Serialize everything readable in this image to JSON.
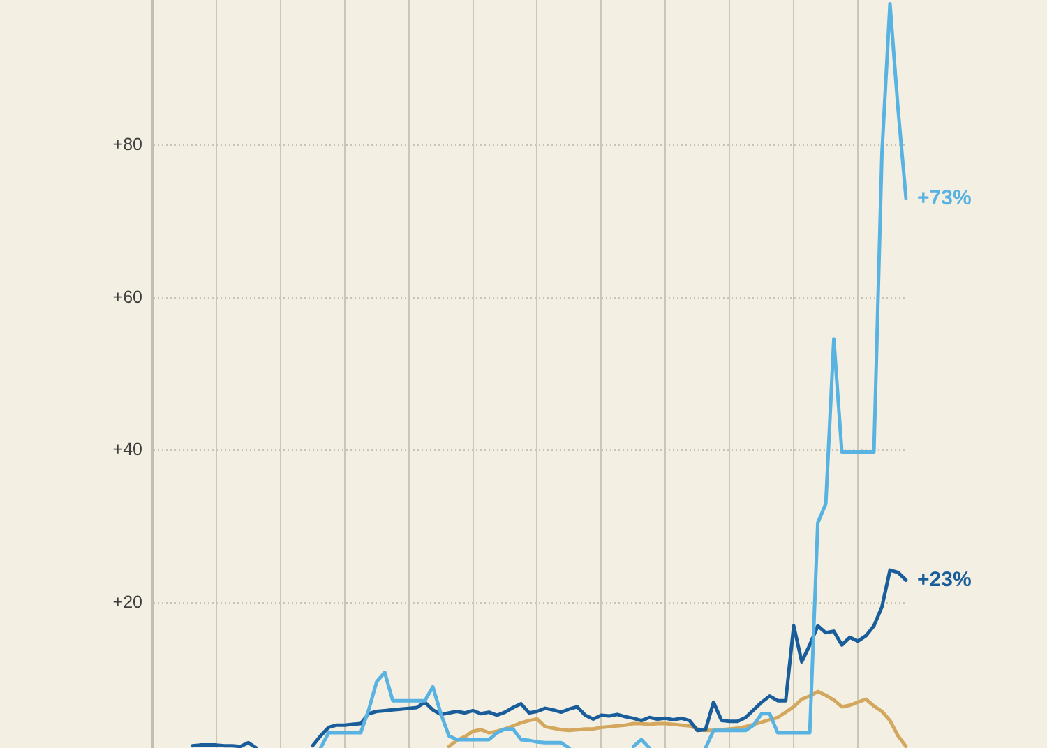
{
  "chart_data": {
    "type": "line",
    "categories": [
      null,
      null,
      null,
      null,
      null,
      null,
      null,
      null,
      null,
      null,
      null,
      null,
      null,
      null,
      null,
      null,
      null,
      null,
      null,
      null,
      null,
      null,
      null,
      null,
      null,
      null,
      null,
      null,
      null,
      null,
      null,
      null,
      null,
      null,
      null,
      null,
      null,
      null,
      null,
      null,
      null,
      null,
      null,
      null,
      null,
      null,
      null,
      null,
      null,
      null,
      null,
      null,
      null,
      null,
      null,
      null,
      null,
      null,
      null,
      null,
      null,
      null,
      null,
      null,
      null,
      null,
      null,
      null,
      null,
      null,
      null,
      null,
      null,
      null,
      null,
      null,
      null,
      null,
      null,
      null,
      null,
      null,
      null,
      null,
      null,
      null,
      null,
      null,
      null,
      null,
      null,
      null,
      null,
      null,
      null
    ],
    "ylim": [
      1,
      99
    ],
    "yticks": [
      {
        "value": 20,
        "label": "+20"
      },
      {
        "value": 40,
        "label": "+40"
      },
      {
        "value": 60,
        "label": "+60"
      },
      {
        "value": 80,
        "label": "+80"
      }
    ],
    "grid": true,
    "legend": false,
    "marker": "none",
    "line_style": "solid",
    "series": [
      {
        "color": "#58b2e2",
        "values": [
          null,
          null,
          null,
          null,
          null,
          null,
          null,
          null,
          null,
          null,
          null,
          null,
          null,
          null,
          null,
          null,
          null,
          null,
          null,
          null,
          null,
          1.0,
          3.0,
          3.0,
          3.0,
          3.0,
          3.0,
          6.0,
          9.7,
          10.9,
          7.2,
          7.2,
          7.2,
          7.2,
          7.2,
          9.0,
          5.5,
          2.6,
          2.1,
          2.1,
          2.1,
          2.1,
          2.1,
          3.0,
          3.5,
          3.5,
          2.1,
          2.0,
          1.8,
          1.7,
          1.7,
          1.7,
          1.0,
          null,
          null,
          null,
          null,
          null,
          null,
          null,
          null,
          null,
          null,
          null,
          null,
          null,
          null,
          null,
          null,
          null,
          null,
          null,
          null,
          null,
          null,
          null,
          null,
          null,
          null,
          null,
          null,
          null,
          null,
          null,
          null,
          null,
          null,
          null,
          null,
          null,
          null,
          null,
          null,
          null,
          null
        ]
      },
      {
        "color": "#58b2e2",
        "values": [
          null,
          null,
          null,
          null,
          null,
          null,
          null,
          null,
          null,
          null,
          null,
          null,
          null,
          null,
          null,
          null,
          null,
          null,
          null,
          null,
          null,
          null,
          null,
          null,
          null,
          null,
          null,
          null,
          null,
          null,
          null,
          null,
          null,
          null,
          null,
          null,
          null,
          null,
          null,
          null,
          null,
          null,
          null,
          null,
          null,
          null,
          null,
          null,
          null,
          null,
          null,
          null,
          null,
          null,
          null,
          null,
          null,
          null,
          null,
          null,
          1.2,
          2.1,
          1.0,
          null,
          null,
          null,
          null,
          null,
          null,
          null,
          null,
          null,
          null,
          null,
          null,
          null,
          null,
          null,
          null,
          null,
          null,
          null,
          null,
          null,
          null,
          null,
          null,
          null,
          null,
          null,
          null,
          null,
          null,
          null,
          null
        ]
      },
      {
        "color": "#58b2e2",
        "values": [
          null,
          null,
          null,
          null,
          null,
          null,
          null,
          null,
          null,
          null,
          null,
          null,
          null,
          null,
          null,
          null,
          null,
          null,
          null,
          null,
          null,
          null,
          null,
          null,
          null,
          null,
          null,
          null,
          null,
          null,
          null,
          null,
          null,
          null,
          null,
          null,
          null,
          null,
          null,
          null,
          null,
          null,
          null,
          null,
          null,
          null,
          null,
          null,
          null,
          null,
          null,
          null,
          null,
          null,
          null,
          null,
          null,
          null,
          null,
          null,
          null,
          null,
          null,
          null,
          null,
          null,
          null,
          null,
          null,
          1.0,
          3.3,
          3.3,
          3.3,
          3.3,
          3.3,
          4.0,
          5.5,
          5.5,
          3.0,
          3.0,
          3.0,
          3.0,
          3.0,
          30.5,
          33,
          54.6,
          39.8,
          39.8,
          39.8,
          39.8,
          39.8,
          79,
          98.5,
          84.8,
          73
        ],
        "value_labels": [
          null,
          null,
          null,
          null,
          null,
          null,
          null,
          null,
          null,
          null,
          null,
          null,
          null,
          null,
          null,
          null,
          null,
          null,
          null,
          null,
          null,
          null,
          null,
          null,
          null,
          null,
          null,
          null,
          null,
          null,
          null,
          null,
          null,
          null,
          null,
          null,
          null,
          null,
          null,
          null,
          null,
          null,
          null,
          null,
          null,
          null,
          null,
          null,
          null,
          null,
          null,
          null,
          null,
          null,
          null,
          null,
          null,
          null,
          null,
          null,
          null,
          null,
          null,
          null,
          null,
          null,
          null,
          null,
          null,
          null,
          null,
          null,
          null,
          null,
          null,
          null,
          null,
          null,
          null,
          null,
          null,
          null,
          null,
          null,
          null,
          null,
          null,
          null,
          null,
          null,
          null,
          null,
          null,
          null,
          "+73%"
        ]
      },
      {
        "color": "#1a5d9b",
        "values": [
          null,
          null,
          null,
          null,
          null,
          1.3,
          1.4,
          1.4,
          1.4,
          1.3,
          1.3,
          1.2,
          1.7,
          1.0,
          null,
          null,
          null,
          null,
          null,
          null,
          null,
          null,
          null,
          null,
          null,
          null,
          null,
          null,
          null,
          null,
          null,
          null,
          null,
          null,
          null,
          null,
          null,
          null,
          null,
          null,
          null,
          null,
          null,
          null,
          null,
          null,
          null,
          null,
          null,
          null,
          null,
          null,
          null,
          null,
          null,
          null,
          null,
          null,
          null,
          null,
          null,
          null,
          null,
          null,
          null,
          null,
          null,
          null,
          null,
          null,
          null,
          null,
          null,
          null,
          null,
          null,
          null,
          null,
          null,
          null,
          null,
          null,
          null,
          null,
          null,
          null,
          null,
          null,
          null,
          null,
          null,
          null,
          null,
          null,
          null
        ]
      },
      {
        "color": "#1a5d9b",
        "values": [
          null,
          null,
          null,
          null,
          null,
          null,
          null,
          null,
          null,
          null,
          null,
          null,
          null,
          null,
          null,
          null,
          null,
          null,
          null,
          null,
          1.3,
          2.6,
          3.7,
          4.0,
          4.0,
          4.1,
          4.2,
          5.5,
          5.8,
          5.9,
          6.0,
          6.1,
          6.2,
          6.3,
          7.0,
          6.0,
          5.4,
          5.6,
          5.8,
          5.6,
          5.9,
          5.5,
          5.7,
          5.3,
          5.7,
          6.3,
          6.8,
          5.6,
          5.8,
          6.2,
          6.0,
          5.7,
          6.1,
          6.4,
          5.3,
          4.8,
          5.3,
          5.2,
          5.4,
          5.1,
          4.9,
          4.6,
          5.0,
          4.8,
          4.9,
          4.7,
          4.9,
          4.6,
          3.3,
          3.4,
          7.0,
          4.6,
          4.5,
          4.5,
          5.0,
          6.0,
          7.0,
          7.8,
          7.2,
          7.2,
          17.0,
          12.3,
          14.5,
          17.0,
          16.1,
          16.3,
          14.5,
          15.5,
          15.0,
          15.7,
          17.0,
          19.5,
          24.3,
          24.0,
          23
        ],
        "value_labels": [
          null,
          null,
          null,
          null,
          null,
          null,
          null,
          null,
          null,
          null,
          null,
          null,
          null,
          null,
          null,
          null,
          null,
          null,
          null,
          null,
          null,
          null,
          null,
          null,
          null,
          null,
          null,
          null,
          null,
          null,
          null,
          null,
          null,
          null,
          null,
          null,
          null,
          null,
          null,
          null,
          null,
          null,
          null,
          null,
          null,
          null,
          null,
          null,
          null,
          null,
          null,
          null,
          null,
          null,
          null,
          null,
          null,
          null,
          null,
          null,
          null,
          null,
          null,
          null,
          null,
          null,
          null,
          null,
          null,
          null,
          null,
          null,
          null,
          null,
          null,
          null,
          null,
          null,
          null,
          null,
          null,
          null,
          null,
          null,
          null,
          null,
          null,
          null,
          null,
          null,
          null,
          null,
          null,
          null,
          "+23%"
        ]
      },
      {
        "color": "#d3a85e",
        "values": [
          null,
          null,
          null,
          null,
          null,
          null,
          null,
          null,
          null,
          null,
          null,
          null,
          null,
          null,
          null,
          null,
          null,
          null,
          null,
          null,
          null,
          null,
          null,
          null,
          null,
          null,
          null,
          null,
          null,
          null,
          null,
          null,
          null,
          null,
          null,
          null,
          null,
          1.2,
          2.0,
          2.5,
          3.2,
          3.4,
          3.0,
          3.2,
          3.5,
          3.9,
          4.3,
          4.6,
          4.8,
          3.8,
          3.6,
          3.4,
          3.3,
          3.4,
          3.5,
          3.5,
          3.7,
          3.8,
          3.9,
          4.0,
          4.2,
          4.2,
          4.1,
          4.2,
          4.2,
          4.1,
          4.0,
          3.9,
          3.5,
          3.3,
          3.3,
          3.4,
          3.5,
          3.6,
          3.8,
          4.1,
          4.4,
          4.7,
          5.0,
          5.7,
          6.4,
          7.4,
          7.8,
          8.4,
          7.9,
          7.3,
          6.4,
          6.6,
          7.0,
          7.4,
          6.5,
          5.8,
          4.6,
          2.6,
          1.2
        ]
      }
    ]
  }
}
